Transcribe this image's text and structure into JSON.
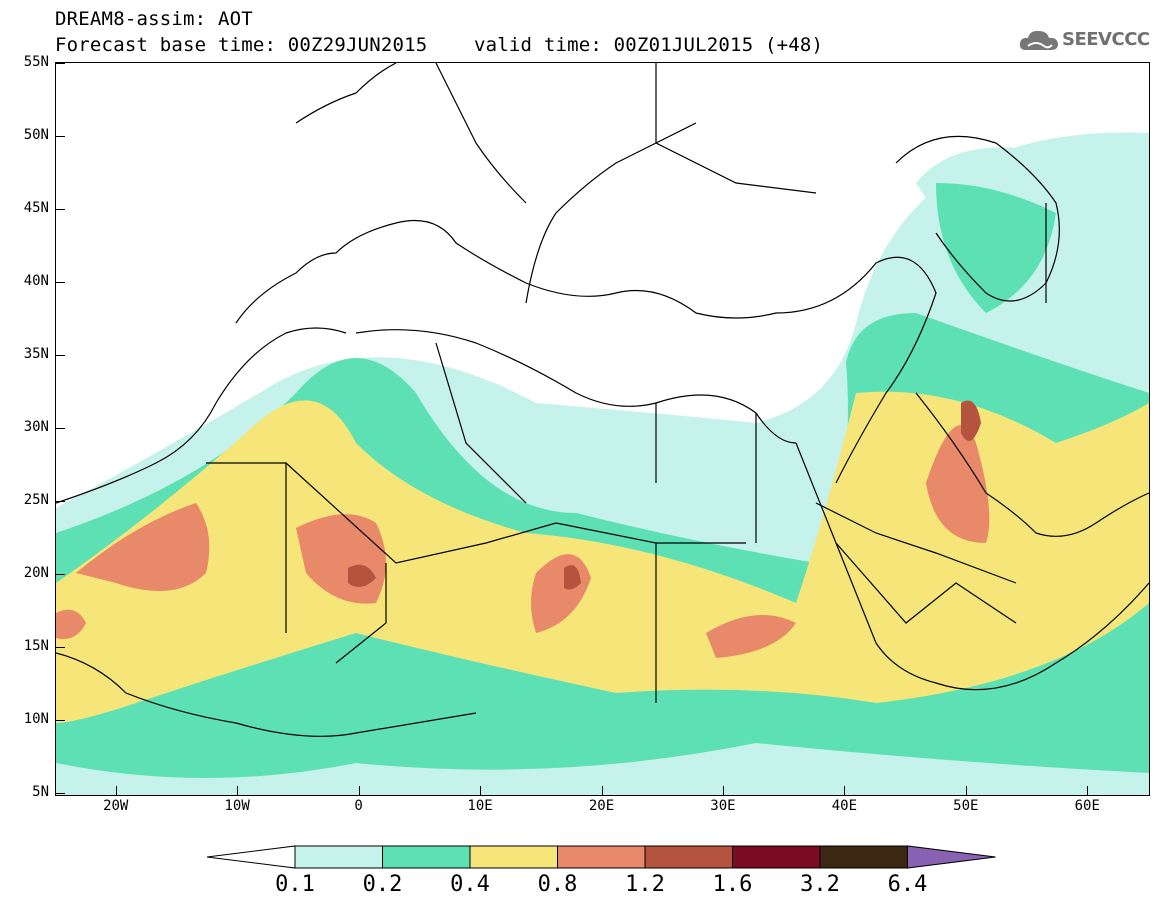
{
  "title": {
    "line1": "DREAM8-assim: AOT",
    "line2": "Forecast base time: 00Z29JUN2015    valid time: 00Z01JUL2015 (+48)"
  },
  "logo": {
    "text": "SEEVCCC",
    "icon": "cloud-icon"
  },
  "map": {
    "lat_labels": [
      "55N",
      "50N",
      "45N",
      "40N",
      "35N",
      "30N",
      "25N",
      "20N",
      "15N",
      "10N",
      "5N"
    ],
    "lon_labels": [
      "20W",
      "10W",
      "0",
      "10E",
      "20E",
      "30E",
      "40E",
      "50E",
      "60E"
    ],
    "lat_range": [
      5,
      55
    ],
    "lon_range": [
      -25,
      65
    ]
  },
  "legend": {
    "labels": [
      "0.1",
      "0.2",
      "0.4",
      "0.8",
      "1.2",
      "1.6",
      "3.2",
      "6.4"
    ],
    "colors": [
      "#ffffff",
      "#c5f2ea",
      "#5de0b4",
      "#f6e67a",
      "#e8896a",
      "#b5543e",
      "#7b0a22",
      "#3b2712",
      "#8a62b3"
    ]
  }
}
